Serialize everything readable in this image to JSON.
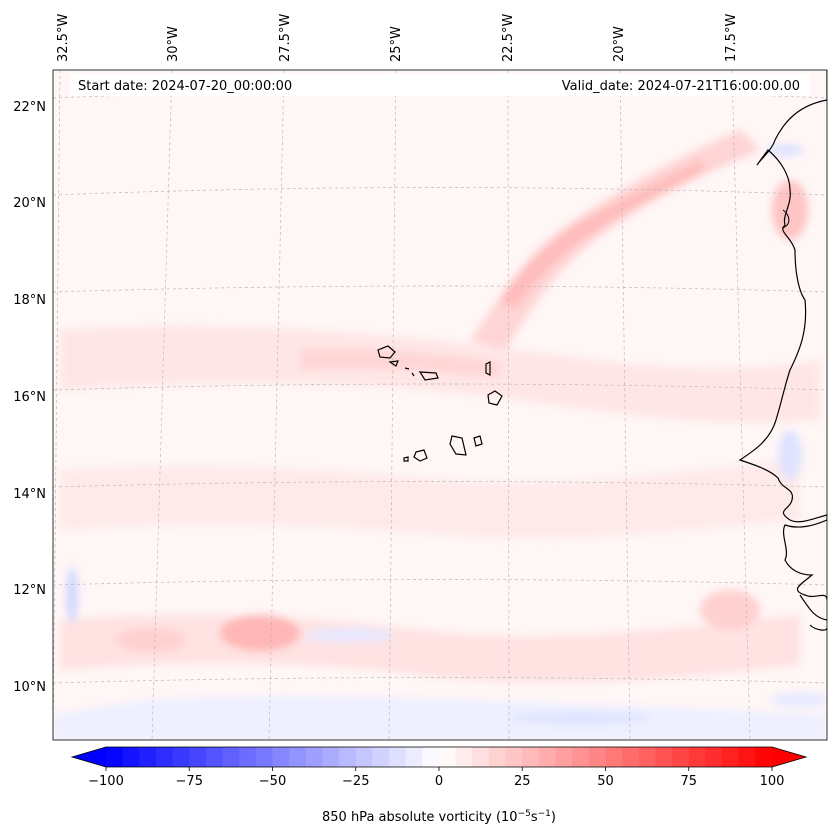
{
  "header": {
    "start_date": "Start date: 2024-07-20_00:00:00",
    "valid_date": "Valid_date: 2024-07-21T16:00:00.00"
  },
  "longitude_labels": [
    "32.5°W",
    "30°W",
    "27.5°W",
    "25°W",
    "22.5°W",
    "20°W",
    "17.5°W"
  ],
  "latitude_labels": [
    "22°N",
    "20°N",
    "18°N",
    "16°N",
    "14°N",
    "12°N",
    "10°N"
  ],
  "colorbar": {
    "ticks": [
      "−100",
      "−75",
      "−50",
      "−25",
      "0",
      "25",
      "50",
      "75",
      "100"
    ],
    "label": "850 hPa absolute vorticity (10",
    "label_exp1": "−5",
    "label_mid": "s",
    "label_exp2": "−1",
    "label_end": ")",
    "min": -100,
    "max": 100,
    "levels": 40,
    "low_color": "#0000ff",
    "high_color": "#ff0000"
  },
  "colors": {
    "background_field": "#fff6f6",
    "coastline": "#000000",
    "gridline": "#b8b8b8"
  }
}
